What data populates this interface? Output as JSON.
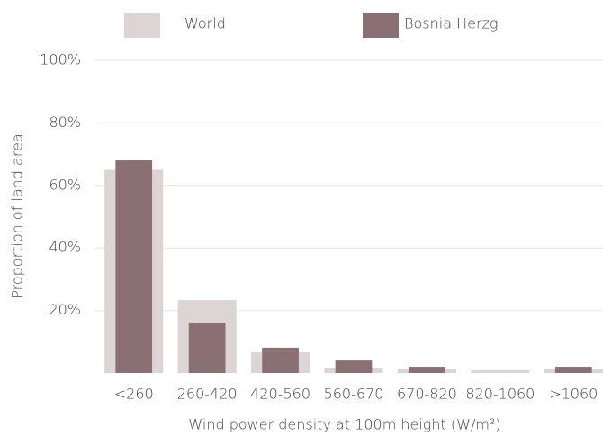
{
  "chart_data": {
    "type": "bar",
    "categories": [
      "<260",
      "260-420",
      "420-560",
      "560-670",
      "670-820",
      "820-1060",
      ">1060"
    ],
    "series": [
      {
        "name": "World",
        "color": "#ddd5d5",
        "values": [
          65,
          23.3,
          6.6,
          1.7,
          1.4,
          0.9,
          1.4
        ]
      },
      {
        "name": "Bosnia Herzg",
        "color": "#8a7073",
        "values": [
          68,
          16.1,
          8.1,
          4,
          2,
          0,
          2
        ]
      }
    ],
    "x_label": "Wind power density at 100m height (W/m²)",
    "y_label": "Proportion of land area",
    "ylim": [
      0,
      100
    ],
    "yticks": [
      {
        "value": 20,
        "label": "20%"
      },
      {
        "value": 40,
        "label": "40%"
      },
      {
        "value": 60,
        "label": "60%"
      },
      {
        "value": 80,
        "label": "80%"
      },
      {
        "value": 100,
        "label": "100%"
      }
    ],
    "grid": true
  }
}
